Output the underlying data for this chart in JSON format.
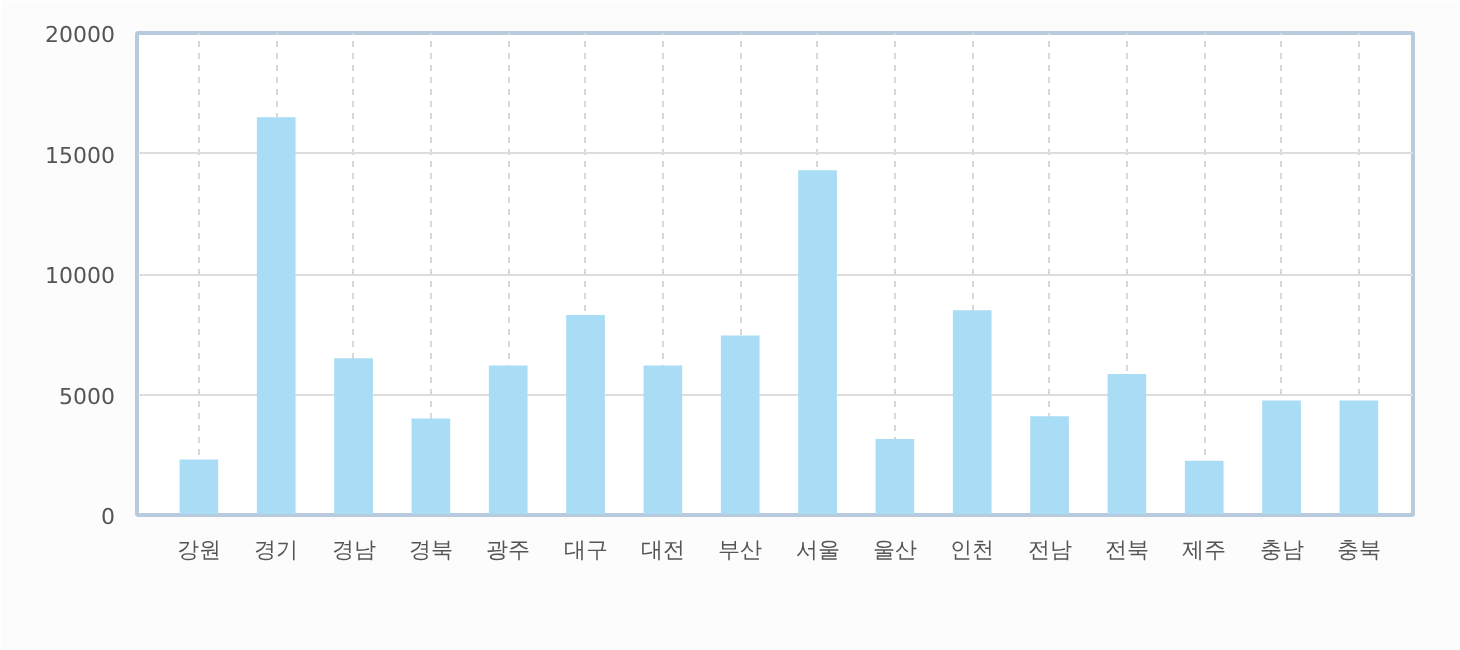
{
  "chart_data": {
    "type": "bar",
    "categories": [
      "강원",
      "경기",
      "경남",
      "경북",
      "광주",
      "대구",
      "대전",
      "부산",
      "서울",
      "울산",
      "인천",
      "전남",
      "전북",
      "제주",
      "충남",
      "충북"
    ],
    "series": [
      {
        "color": "#a8ddf5",
        "values": [
          2300,
          16500,
          6500,
          4000,
          6200,
          8300,
          6200,
          7450,
          14300,
          3150,
          8500,
          4100,
          5850,
          2250,
          4750,
          4750
        ]
      }
    ],
    "ylim": [
      0,
      20000
    ],
    "yticks": [
      0,
      5000,
      10000,
      15000,
      20000
    ],
    "grid": true
  }
}
